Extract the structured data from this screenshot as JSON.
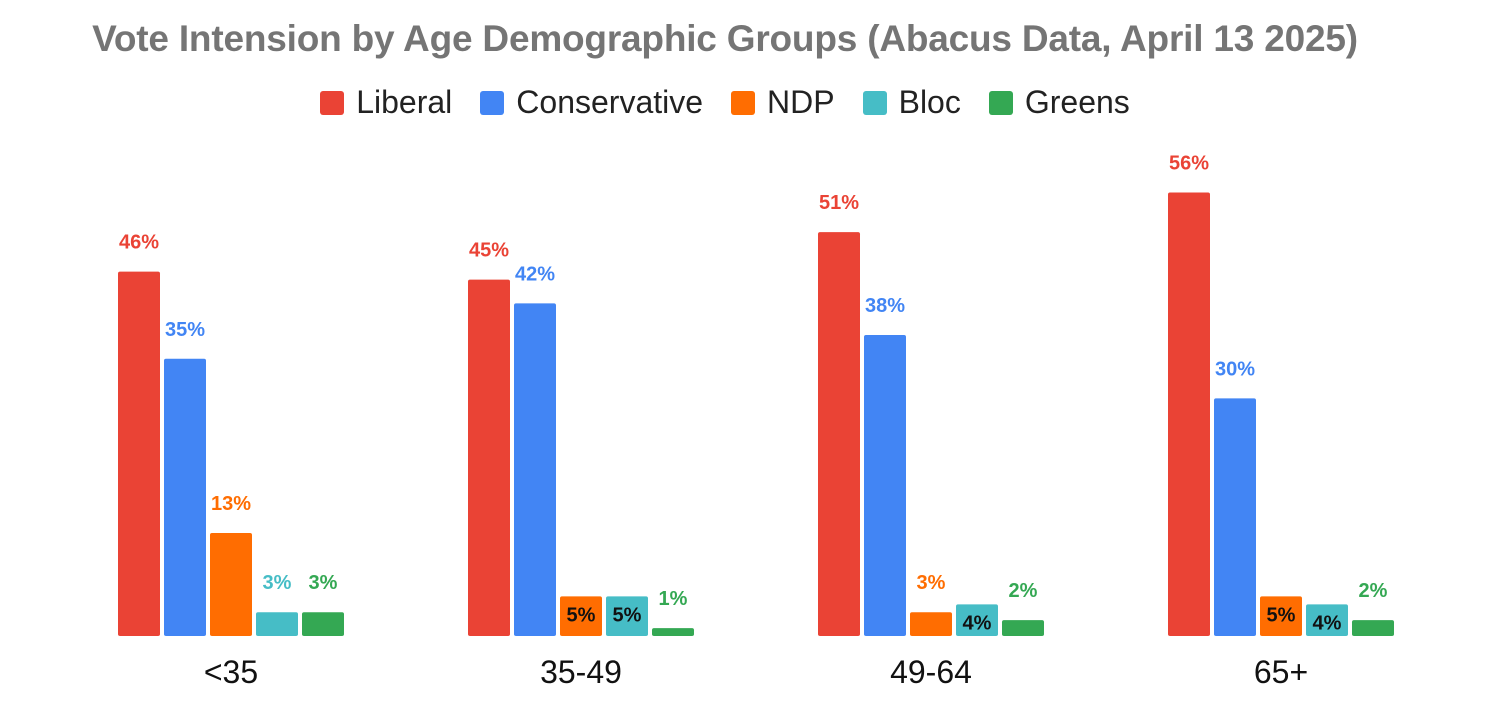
{
  "chart_data": {
    "type": "bar",
    "title": "Vote Intension by Age Demographic Groups (Abacus Data, April 13 2025)",
    "categories": [
      "<35",
      "35-49",
      "49-64",
      "65+"
    ],
    "series": [
      {
        "name": "Liberal",
        "color": "#ea4335",
        "values": [
          46,
          45,
          51,
          56
        ],
        "labels": [
          "46%",
          "45%",
          "51%",
          "56%"
        ]
      },
      {
        "name": "Conservative",
        "color": "#4285f4",
        "values": [
          35,
          42,
          38,
          30
        ],
        "labels": [
          "35%",
          "42%",
          "38%",
          "30%"
        ]
      },
      {
        "name": "NDP",
        "color": "#ff6d01",
        "values": [
          13,
          5,
          3,
          5
        ],
        "labels": [
          "13%",
          "5%",
          "3%",
          "5%"
        ]
      },
      {
        "name": "Bloc",
        "color": "#46bdc6",
        "values": [
          3,
          5,
          4,
          4
        ],
        "labels": [
          "3%",
          "5%",
          "4%",
          "4%"
        ]
      },
      {
        "name": "Greens",
        "color": "#34a853",
        "values": [
          3,
          1,
          2,
          2
        ],
        "labels": [
          "3%",
          "1%",
          "2%",
          "2%"
        ]
      }
    ],
    "ylim": [
      0,
      60
    ],
    "legend_position": "top-center",
    "grid": false
  }
}
